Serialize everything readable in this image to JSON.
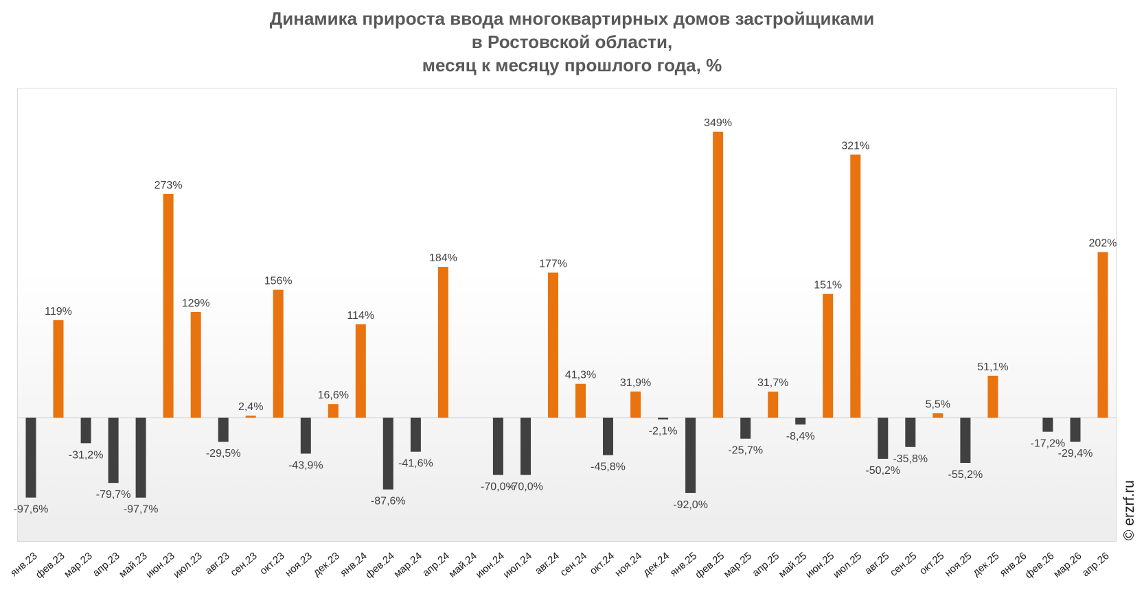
{
  "title_lines": [
    "Динамика прироста ввода многоквартирных домов застройщиками",
    "в Ростовской области,",
    "месяц к месяцу прошлого года, %"
  ],
  "credit": "© erzrf.ru",
  "colors": {
    "positive": "#e8730f",
    "negative": "#404040",
    "label": "#404040",
    "title": "#595959"
  },
  "chart_data": {
    "type": "bar",
    "title": "Динамика прироста ввода многоквартирных домов застройщиками в Ростовской области, месяц к месяцу прошлого года, %",
    "xlabel": "",
    "ylabel": "",
    "ylim": [
      -100,
      349
    ],
    "grid": false,
    "legend": "none",
    "categories": [
      "янв.23",
      "фев.23",
      "мар.23",
      "апр.23",
      "май.23",
      "июн.23",
      "июл.23",
      "авг.23",
      "сен.23",
      "окт.23",
      "ноя.23",
      "дек.23",
      "янв.24",
      "фев.24",
      "мар.24",
      "апр.24",
      "май.24",
      "июн.24",
      "июл.24",
      "авг.24",
      "сен.24",
      "окт.24",
      "ноя.24",
      "дек.24",
      "янв.25",
      "фев.25",
      "мар.25",
      "апр.25",
      "май.25",
      "июн.25",
      "июл.25",
      "авг.25",
      "сен.25",
      "окт.25",
      "ноя.25",
      "дек.25",
      "янв.26",
      "фев.26",
      "мар.26",
      "апр.26"
    ],
    "values": [
      -97.6,
      119,
      -31.2,
      -79.7,
      -97.7,
      273,
      129,
      -29.5,
      2.4,
      156,
      -43.9,
      16.6,
      114,
      -87.6,
      -41.6,
      184,
      null,
      -70.0,
      -70.0,
      177,
      41.3,
      -45.8,
      31.9,
      -2.1,
      -92.0,
      349,
      -25.7,
      31.7,
      -8.4,
      151,
      321,
      -50.2,
      -35.8,
      5.5,
      -55.2,
      51.1,
      null,
      -17.2,
      -29.4,
      202
    ],
    "data_labels": [
      "-97,6%",
      "119%",
      "-31,2%",
      "-79,7%",
      "-97,7%",
      "273%",
      "129%",
      "-29,5%",
      "2,4%",
      "156%",
      "-43,9%",
      "16,6%",
      "114%",
      "-87,6%",
      "-41,6%",
      "184%",
      "",
      "-70,0%",
      "-70,0%",
      "177%",
      "41,3%",
      "-45,8%",
      "31,9%",
      "-2,1%",
      "-92,0%",
      "349%",
      "-25,7%",
      "31,7%",
      "-8,4%",
      "151%",
      "321%",
      "-50,2%",
      "-35,8%",
      "5,5%",
      "-55,2%",
      "51,1%",
      "",
      "-17,2%",
      "-29,4%",
      "202%"
    ]
  }
}
